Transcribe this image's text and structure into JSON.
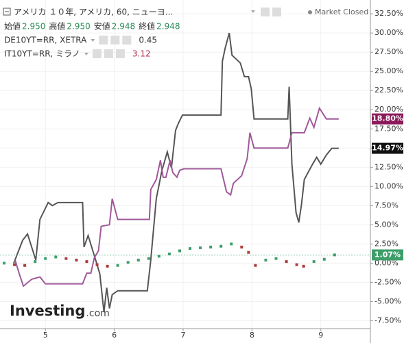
{
  "chart_data": {
    "type": "line",
    "title": "アメリカ １０年, アメリカ, 60, ニューヨ...",
    "status": "Market Closed",
    "ohlc": [
      {
        "label": "始値",
        "value": "2.950"
      },
      {
        "label": "高値",
        "value": "2.950"
      },
      {
        "label": "安値",
        "value": "2.948"
      },
      {
        "label": "終値",
        "value": "2.948"
      }
    ],
    "watermark": [
      "Investing",
      ".com"
    ],
    "xlim": [
      4.34,
      9.72
    ],
    "xticks": [
      5,
      6,
      7,
      8,
      9
    ],
    "ylim": [
      -8.0,
      34.3
    ],
    "yticks": [
      {
        "value": 32.5,
        "label": "32.50%"
      },
      {
        "value": 30,
        "label": "30.00%"
      },
      {
        "value": 27.5,
        "label": "27.50%"
      },
      {
        "value": 25,
        "label": "25.00%"
      },
      {
        "value": 22.5,
        "label": "22.50%"
      },
      {
        "value": 20,
        "label": "20.00%"
      },
      {
        "value": 17.5,
        "label": "17.50%"
      },
      {
        "value": 15,
        "label": "15.00%"
      },
      {
        "value": 12.5,
        "label": "12.50%"
      },
      {
        "value": 10,
        "label": "10.00%"
      },
      {
        "value": 7.5,
        "label": "7.50%"
      },
      {
        "value": 5,
        "label": "5.00%"
      },
      {
        "value": 2.5,
        "label": "2.50%"
      },
      {
        "value": 0,
        "label": "0.00%"
      },
      {
        "value": -2.5,
        "label": "-2.50%"
      },
      {
        "value": -5,
        "label": "-5.00%"
      },
      {
        "value": -7.5,
        "label": "-7.50%"
      }
    ],
    "grid": true,
    "series": [
      {
        "name": "DE10YT=RR, XETRA",
        "legend_value": "0.45",
        "color": "#555555",
        "badge_color": "#111111",
        "legend_value_color": "#333333",
        "last_value_label": "14.97%",
        "style": "line",
        "x": [
          4.54,
          4.67,
          4.74,
          4.86,
          4.92,
          5.04,
          5.1,
          5.18,
          5.54,
          5.56,
          5.62,
          5.73,
          5.79,
          5.85,
          5.89,
          5.93,
          5.97,
          6.05,
          6.48,
          6.53,
          6.61,
          6.69,
          6.77,
          6.83,
          6.89,
          6.93,
          6.99,
          7.55,
          7.57,
          7.61,
          7.67,
          7.71,
          7.83,
          7.89,
          7.95,
          7.99,
          8.03,
          8.52,
          8.54,
          8.58,
          8.64,
          8.68,
          8.72,
          8.76,
          8.88,
          8.94,
          9.0,
          9.08,
          9.16,
          9.26
        ],
        "values": [
          0,
          3.0,
          3.8,
          0.4,
          5.7,
          7.9,
          7.5,
          7.9,
          7.9,
          2.1,
          3.6,
          0.4,
          -1.4,
          -6.4,
          -3.2,
          -5.9,
          -4.1,
          -3.6,
          -3.6,
          0.4,
          8.4,
          12.0,
          14.5,
          12.4,
          17.3,
          18.2,
          19.3,
          19.3,
          26.3,
          28.0,
          30.0,
          27.1,
          26.1,
          24.3,
          24.3,
          22.7,
          18.8,
          18.8,
          23.0,
          12.9,
          6.6,
          5.3,
          7.7,
          10.9,
          12.9,
          13.8,
          12.9,
          14.1,
          14.97,
          14.97
        ]
      },
      {
        "name": "IT10YT=RR, ミラノ",
        "legend_value": "3.12",
        "color": "#a0589a",
        "badge_color": "#8a1a5a",
        "legend_value_color": "#b02a4a",
        "last_value_label": "18.80%",
        "style": "line",
        "x": [
          4.56,
          4.62,
          4.68,
          4.8,
          4.92,
          5.0,
          5.54,
          5.6,
          5.66,
          5.71,
          5.77,
          5.81,
          5.93,
          5.97,
          6.05,
          6.51,
          6.53,
          6.61,
          6.67,
          6.71,
          6.75,
          6.81,
          6.85,
          6.91,
          6.95,
          7.01,
          7.55,
          7.63,
          7.69,
          7.73,
          7.85,
          7.93,
          7.97,
          8.03,
          8.52,
          8.58,
          8.76,
          8.84,
          8.9,
          8.98,
          9.08,
          9.26
        ],
        "values": [
          0.4,
          -1.4,
          -3.0,
          -2.1,
          -1.8,
          -2.7,
          -2.7,
          -1.3,
          -1.3,
          0.7,
          1.6,
          4.8,
          5.0,
          8.4,
          5.7,
          5.7,
          9.6,
          10.9,
          13.4,
          11.2,
          11.2,
          13.4,
          11.8,
          11.2,
          12.1,
          12.3,
          12.3,
          9.3,
          8.9,
          10.4,
          11.4,
          13.6,
          17.0,
          15.0,
          15.0,
          17.0,
          17.0,
          18.9,
          17.7,
          20.2,
          18.8,
          18.8
        ]
      },
      {
        "name": "アメリカ １０年",
        "color": "#3d9e6a",
        "down_color": "#b03a3a",
        "badge_color": "#3d9e6a",
        "last_value_label": "1.07%",
        "style": "bars",
        "x": [
          4.4,
          4.55,
          4.7,
          4.85,
          5.0,
          5.15,
          5.3,
          5.45,
          5.6,
          5.75,
          5.9,
          6.05,
          6.2,
          6.35,
          6.5,
          6.65,
          6.8,
          6.95,
          7.1,
          7.25,
          7.4,
          7.55,
          7.7,
          7.85,
          7.95,
          8.05,
          8.2,
          8.35,
          8.5,
          8.65,
          8.75,
          8.9,
          9.05,
          9.2
        ],
        "values": [
          0.0,
          -0.2,
          -0.3,
          0.2,
          0.6,
          0.8,
          0.6,
          0.4,
          0.2,
          -0.2,
          -0.4,
          -0.3,
          0.1,
          0.4,
          0.6,
          0.9,
          1.2,
          1.6,
          1.9,
          2.0,
          2.1,
          2.2,
          2.5,
          2.1,
          1.4,
          -0.3,
          0.4,
          0.6,
          0.2,
          -0.2,
          -0.4,
          0.2,
          0.5,
          1.07
        ]
      }
    ]
  }
}
